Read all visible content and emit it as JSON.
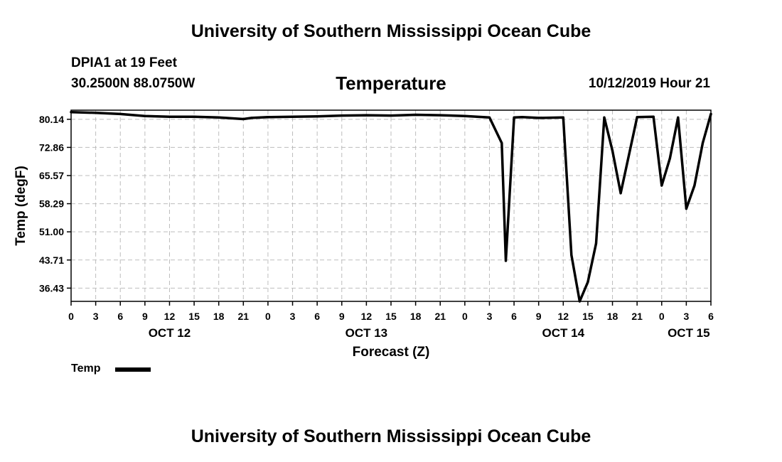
{
  "header": {
    "org_title": "University of Southern Mississippi Ocean Cube",
    "station": "DPIA1 at 19 Feet",
    "coords": "30.2500N 88.0750W",
    "variable": "Temperature",
    "timestamp": "10/12/2019 Hour 21"
  },
  "footer": {
    "org_title": "University of Southern Mississippi Ocean Cube"
  },
  "legend": {
    "label": "Temp"
  },
  "chart_data": {
    "type": "line",
    "title": "Temperature",
    "xlabel": "Forecast (Z)",
    "ylabel": "Temp (degF)",
    "xlim": [
      0,
      78
    ],
    "ylim": [
      33,
      82.5
    ],
    "yticks": [
      36.43,
      43.71,
      51.0,
      58.29,
      65.57,
      72.86,
      80.14
    ],
    "ytick_labels": [
      "36.43",
      "43.71",
      "51.00",
      "58.29",
      "65.57",
      "72.86",
      "80.14"
    ],
    "xticks": [
      0,
      3,
      6,
      9,
      12,
      15,
      18,
      21,
      24,
      27,
      30,
      33,
      36,
      39,
      42,
      45,
      48,
      51,
      54,
      57,
      60,
      63,
      66,
      69,
      72,
      75,
      78
    ],
    "xtick_labels": [
      "0",
      "3",
      "6",
      "9",
      "12",
      "15",
      "18",
      "21",
      "0",
      "3",
      "6",
      "9",
      "12",
      "15",
      "18",
      "21",
      "0",
      "3",
      "6",
      "9",
      "12",
      "15",
      "18",
      "21",
      "0",
      "3",
      "6"
    ],
    "day_labels": [
      {
        "text": "OCT 12",
        "x": 12
      },
      {
        "text": "OCT 13",
        "x": 36
      },
      {
        "text": "OCT 14",
        "x": 60
      },
      {
        "text": "OCT 15",
        "x": 75.3
      }
    ],
    "grid": true,
    "series": [
      {
        "name": "Temp",
        "color": "#000000",
        "x": [
          0,
          3,
          6,
          9,
          12,
          15,
          18,
          21,
          22,
          24,
          27,
          30,
          33,
          36,
          39,
          42,
          45,
          48,
          51,
          52.5,
          53,
          54,
          55,
          57,
          60,
          61,
          62,
          63,
          64,
          65,
          66,
          67,
          69,
          71,
          72,
          73,
          74,
          75,
          76,
          77,
          78
        ],
        "y": [
          82.0,
          81.8,
          81.5,
          81.0,
          80.8,
          80.8,
          80.6,
          80.2,
          80.5,
          80.7,
          80.8,
          80.9,
          81.1,
          81.2,
          81.1,
          81.3,
          81.2,
          81.0,
          80.6,
          74.0,
          43.5,
          80.6,
          80.7,
          80.5,
          80.6,
          45.0,
          33.0,
          38.0,
          48.0,
          80.6,
          72.0,
          61.0,
          80.7,
          80.8,
          63.0,
          70.0,
          80.6,
          57.0,
          63.0,
          74.0,
          81.5
        ]
      }
    ]
  }
}
